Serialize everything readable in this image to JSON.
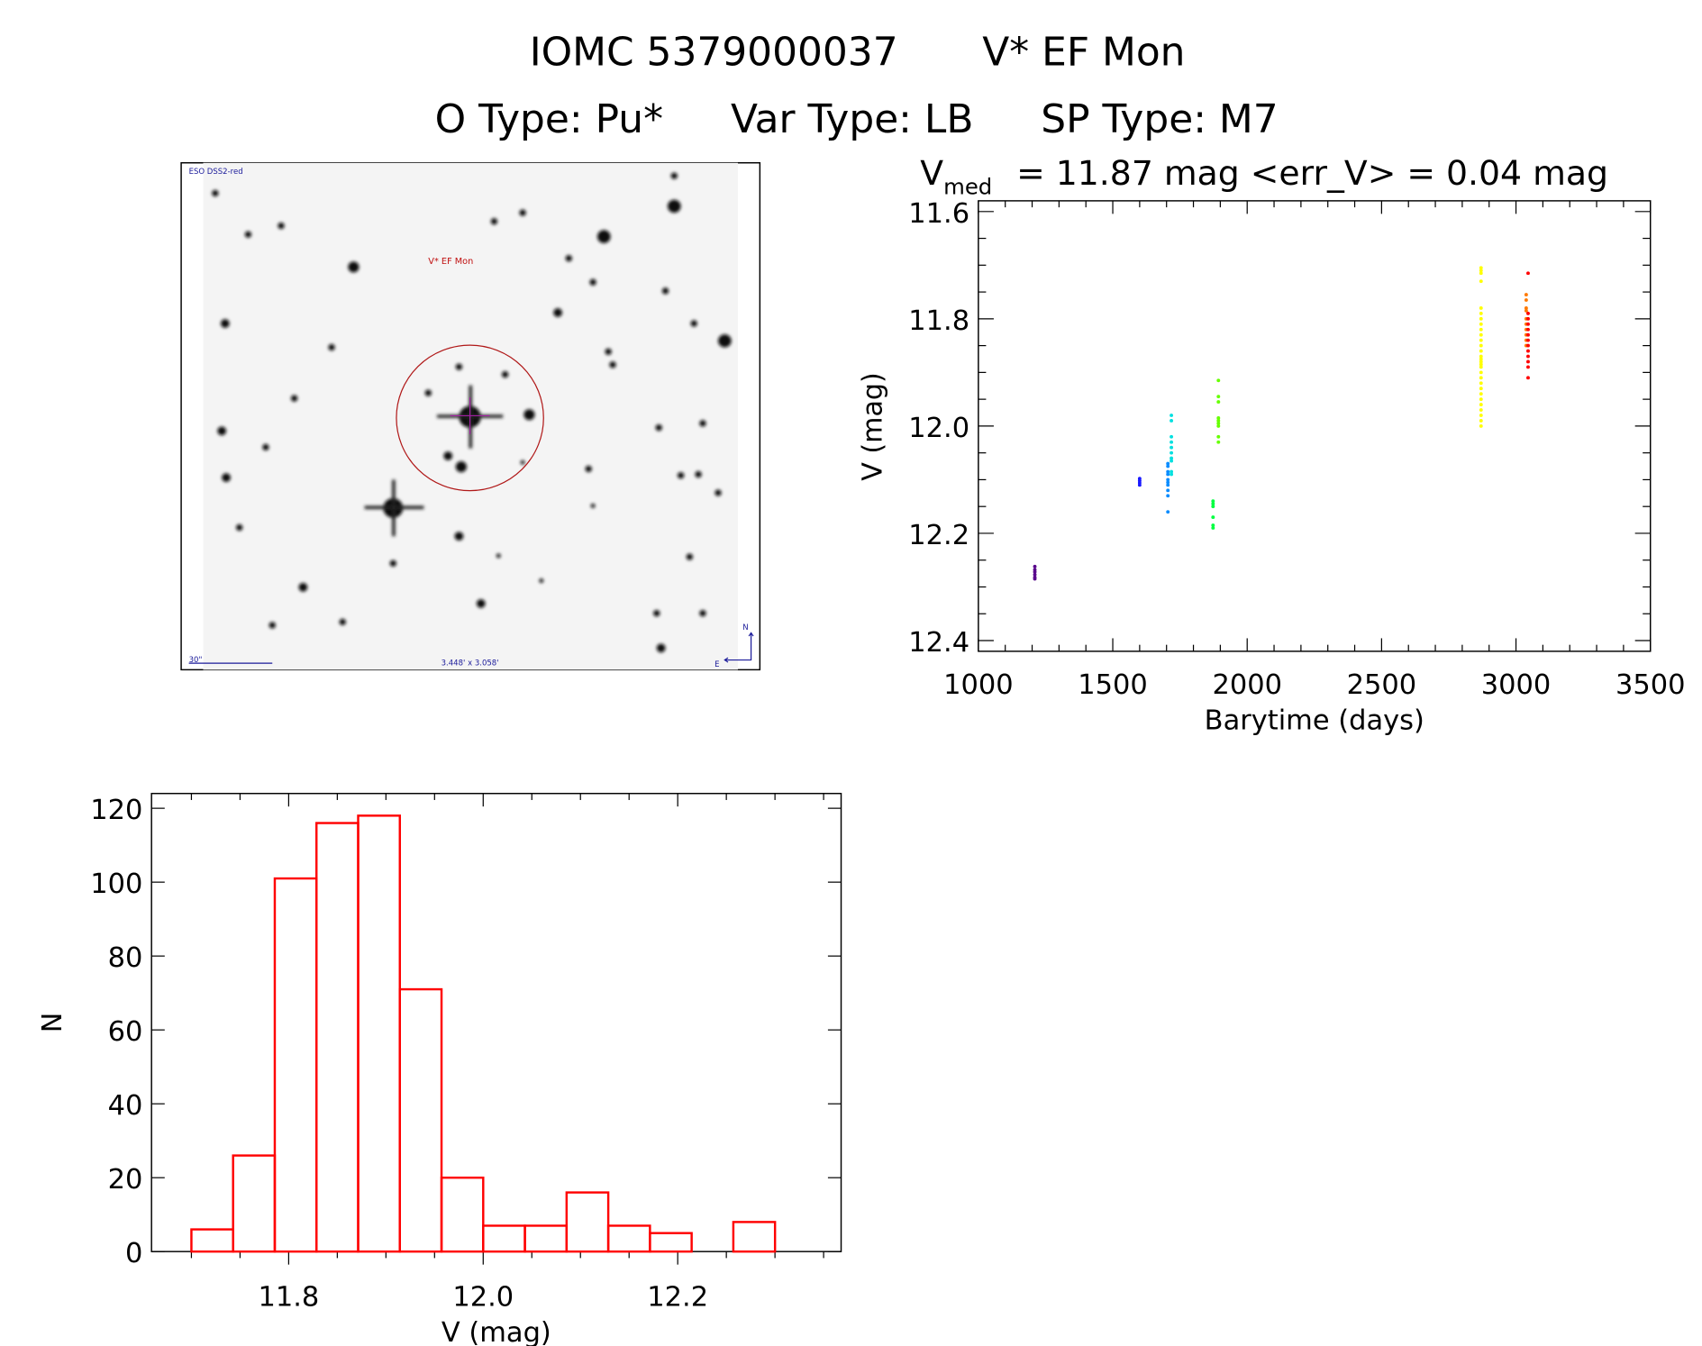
{
  "title": {
    "line1_id": "IOMC 5379000037",
    "line1_name": "V* EF Mon",
    "line2_otype": "O Type: Pu*",
    "line2_vartype": "Var Type: LB",
    "line2_sptype": "SP Type: M7"
  },
  "finder": {
    "survey_label": "ESO DSS2-red",
    "object_label": "V* EF Mon",
    "scale_label": "30\"",
    "fov_label": "3.448' x 3.058'",
    "north_label": "N",
    "east_label": "E"
  },
  "chart_data": [
    {
      "type": "scatter",
      "header_prefix": "V",
      "header_sub": "med",
      "header_rest": "= 11.87 mag <err_V> = 0.04 mag",
      "xlabel": "Barytime (days)",
      "ylabel": "V (mag)",
      "xlim": [
        1000,
        3500
      ],
      "ylim": [
        12.42,
        11.58
      ],
      "xticks": [
        "1000",
        "1500",
        "2000",
        "2500",
        "3000",
        "3500"
      ],
      "yticks": [
        "11.6",
        "11.8",
        "12.0",
        "12.2",
        "12.4"
      ],
      "groups": [
        {
          "color": "#5a0a8c",
          "t": 1210,
          "v": [
            12.262,
            12.268,
            12.272,
            12.277,
            12.282,
            12.285
          ]
        },
        {
          "color": "#1a1aff",
          "t": 1600,
          "v": [
            12.098,
            12.102,
            12.106,
            12.11
          ]
        },
        {
          "color": "#0a8cff",
          "t": 1705,
          "v": [
            12.07,
            12.075,
            12.085,
            12.09,
            12.1,
            12.105,
            12.11,
            12.12,
            12.13,
            12.16
          ]
        },
        {
          "color": "#00e0e0",
          "t": 1718,
          "v": [
            11.98,
            11.99,
            12.02,
            12.03,
            12.04,
            12.05,
            12.06,
            12.065,
            12.085,
            12.09
          ]
        },
        {
          "color": "#00ff40",
          "t": 1873,
          "v": [
            12.14,
            12.145,
            12.15,
            12.17,
            12.185,
            12.19
          ]
        },
        {
          "color": "#66ff00",
          "t": 1893,
          "v": [
            11.915,
            11.945,
            11.955,
            11.985,
            11.99,
            11.995,
            12.0,
            12.02,
            12.03
          ]
        },
        {
          "color": "#ffff00",
          "t": 2870,
          "v": [
            11.705,
            11.71,
            11.715,
            11.73,
            11.78,
            11.79,
            11.8,
            11.81,
            11.82,
            11.83,
            11.84,
            11.85,
            11.86,
            11.87,
            11.875,
            11.88,
            11.885,
            11.89,
            11.9,
            11.91,
            11.92,
            11.93,
            11.94,
            11.95,
            11.96,
            11.97,
            11.98,
            11.99,
            12.0
          ]
        },
        {
          "color": "#ff7a00",
          "t": 3038,
          "v": [
            11.755,
            11.765,
            11.78,
            11.785,
            11.8,
            11.81,
            11.82,
            11.83,
            11.84,
            11.85
          ]
        },
        {
          "color": "#ff0000",
          "t": 3045,
          "v": [
            11.715,
            11.79,
            11.8,
            11.81,
            11.82,
            11.83,
            11.84,
            11.85,
            11.86,
            11.87,
            11.88,
            11.89,
            11.91
          ]
        }
      ]
    },
    {
      "type": "bar",
      "subtype": "histogram",
      "xlabel": "V (mag)",
      "ylabel": "N",
      "xlim": [
        11.659,
        12.368
      ],
      "ylim": [
        0,
        124
      ],
      "xticks": [
        "11.8",
        "12.0",
        "12.2"
      ],
      "yticks": [
        "0",
        "20",
        "40",
        "60",
        "80",
        "100",
        "120"
      ],
      "bin_start": 11.7,
      "bin_width": 0.04286,
      "values": [
        6,
        26,
        101,
        116,
        118,
        71,
        20,
        7,
        7,
        16,
        7,
        5,
        0,
        8
      ],
      "color": "#ff0000"
    }
  ]
}
